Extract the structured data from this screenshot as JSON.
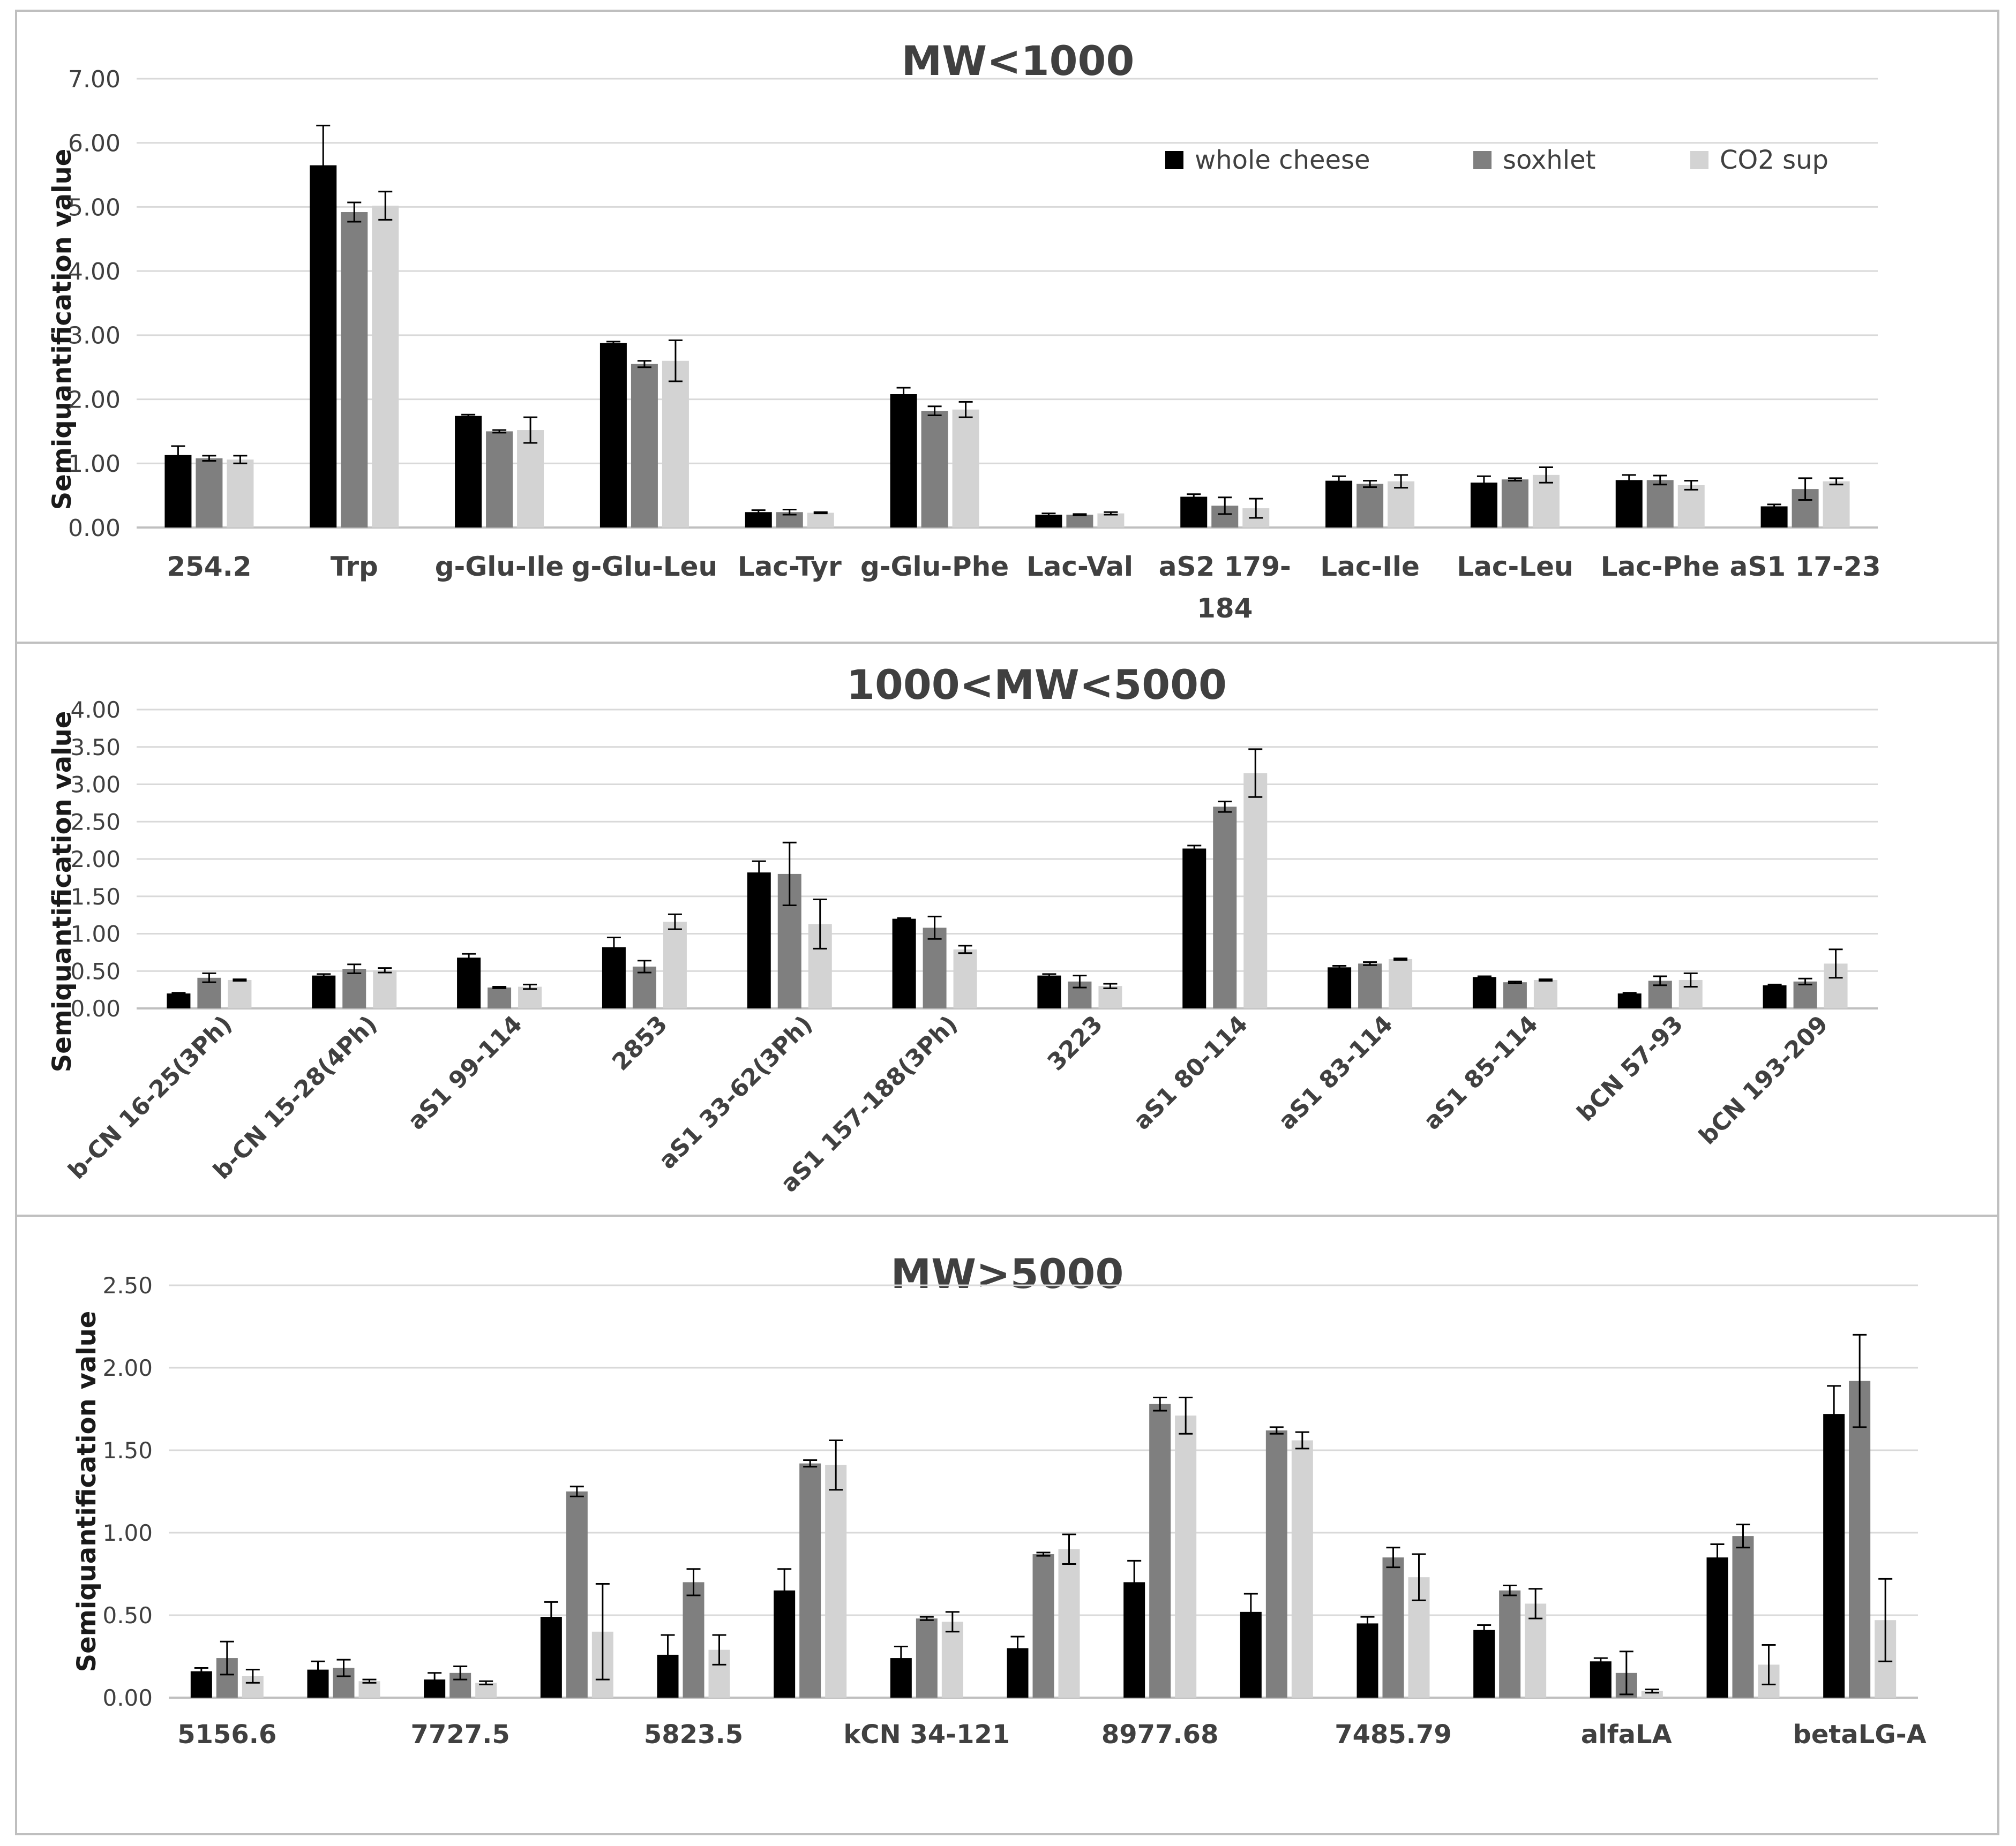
{
  "figure": {
    "series_names": [
      "whole cheese",
      "soxhlet",
      "CO2 sup"
    ],
    "colors": {
      "whole cheese": "#000000",
      "soxhlet": "#7f7f7f",
      "CO2 sup": "#d3d3d3",
      "grid": "#d9d9d9",
      "axis": "#bfbfbf",
      "border": "#bfbfbf"
    }
  },
  "chart_data": [
    {
      "type": "bar",
      "title": "MW<1000",
      "xlabel": "",
      "ylabel": "Semiquantification  value",
      "ylim": [
        0,
        7
      ],
      "yticks": [
        "0.00",
        "1.00",
        "2.00",
        "3.00",
        "4.00",
        "5.00",
        "6.00",
        "7.00"
      ],
      "legend_position": "top-right",
      "categories": [
        "254.2",
        "Trp",
        "g-Glu-Ile",
        "g-Glu-Leu",
        "Lac-Tyr",
        "g-Glu-Phe",
        "Lac-Val",
        "aS2 179-184",
        "Lac-Ile",
        "Lac-Leu",
        "Lac-Phe",
        "aS1 17-23"
      ],
      "category_lines": [
        [
          "254.2"
        ],
        [
          "Trp"
        ],
        [
          "g-Glu-Ile"
        ],
        [
          "g-Glu-Leu"
        ],
        [
          "Lac-Tyr"
        ],
        [
          "g-Glu-Phe"
        ],
        [
          "Lac-Val"
        ],
        [
          "aS2 179-",
          "184"
        ],
        [
          "Lac-Ile"
        ],
        [
          "Lac-Leu"
        ],
        [
          "Lac-Phe"
        ],
        [
          "aS1 17-23"
        ]
      ],
      "series": [
        {
          "name": "whole cheese",
          "values": [
            1.13,
            5.65,
            1.74,
            2.88,
            0.24,
            2.08,
            0.2,
            0.48,
            0.73,
            0.7,
            0.74,
            0.33
          ],
          "errors": [
            0.14,
            0.62,
            0.02,
            0.02,
            0.03,
            0.1,
            0.02,
            0.04,
            0.07,
            0.1,
            0.08,
            0.03
          ]
        },
        {
          "name": "soxhlet",
          "values": [
            1.08,
            4.92,
            1.5,
            2.55,
            0.24,
            1.82,
            0.2,
            0.34,
            0.68,
            0.75,
            0.74,
            0.6
          ],
          "errors": [
            0.04,
            0.15,
            0.02,
            0.05,
            0.04,
            0.07,
            0.01,
            0.13,
            0.05,
            0.02,
            0.07,
            0.17
          ]
        },
        {
          "name": "CO2 sup",
          "values": [
            1.06,
            5.02,
            1.52,
            2.6,
            0.23,
            1.84,
            0.22,
            0.3,
            0.72,
            0.82,
            0.66,
            0.72
          ],
          "errors": [
            0.06,
            0.22,
            0.2,
            0.32,
            0.01,
            0.12,
            0.02,
            0.15,
            0.1,
            0.12,
            0.07,
            0.05
          ]
        }
      ]
    },
    {
      "type": "bar",
      "title": "1000<MW<5000",
      "xlabel": "",
      "ylabel": "Semiquantification  value",
      "ylim": [
        0,
        4
      ],
      "yticks": [
        "0.00",
        "0.50",
        "1.00",
        "1.50",
        "2.00",
        "2.50",
        "3.00",
        "3.50",
        "4.00"
      ],
      "legend_position": "none",
      "categories": [
        "b-CN 16-25(3Ph)",
        "b-CN 15-28(4Ph)",
        "aS1 99-114",
        "2853",
        "aS1 33-62(3Ph)",
        "aS1 157-188(3Ph)",
        "3223",
        "aS1 80-114",
        "aS1 83-114",
        "aS1 85-114",
        "bCN 57-93",
        "bCN 193-209"
      ],
      "series": [
        {
          "name": "whole cheese",
          "values": [
            0.2,
            0.44,
            0.68,
            0.82,
            1.82,
            1.2,
            0.44,
            2.14,
            0.55,
            0.42,
            0.2,
            0.31
          ],
          "errors": [
            0.01,
            0.02,
            0.05,
            0.13,
            0.15,
            0.01,
            0.02,
            0.04,
            0.02,
            0.01,
            0.01,
            0.01
          ]
        },
        {
          "name": "soxhlet",
          "values": [
            0.41,
            0.53,
            0.28,
            0.56,
            1.8,
            1.08,
            0.36,
            2.7,
            0.6,
            0.35,
            0.37,
            0.36
          ],
          "errors": [
            0.06,
            0.06,
            0.01,
            0.08,
            0.42,
            0.15,
            0.08,
            0.07,
            0.02,
            0.01,
            0.06,
            0.04
          ]
        },
        {
          "name": "CO2 sup",
          "values": [
            0.38,
            0.51,
            0.29,
            1.16,
            1.13,
            0.79,
            0.3,
            3.15,
            0.66,
            0.38,
            0.38,
            0.6
          ],
          "errors": [
            0.01,
            0.03,
            0.03,
            0.1,
            0.33,
            0.05,
            0.03,
            0.32,
            0.01,
            0.01,
            0.09,
            0.19
          ]
        }
      ]
    },
    {
      "type": "bar",
      "title": "MW>5000",
      "xlabel": "",
      "ylabel": "Semiquantification  value",
      "ylim": [
        0,
        2.5
      ],
      "yticks": [
        "0.00",
        "0.50",
        "1.00",
        "1.50",
        "2.00",
        "2.50"
      ],
      "legend_position": "none",
      "categories": [
        "5156.6",
        "",
        "7727.5",
        "",
        "5823.5",
        "",
        "kCN 34-121",
        "",
        "8977.68",
        "",
        "7485.79",
        "",
        "alfaLA",
        "",
        "betaLG-A"
      ],
      "series": [
        {
          "name": "whole cheese",
          "values": [
            0.16,
            0.17,
            0.11,
            0.49,
            0.26,
            0.65,
            0.24,
            0.3,
            0.7,
            0.52,
            0.45,
            0.41,
            0.22,
            0.85,
            1.72
          ],
          "errors": [
            0.02,
            0.05,
            0.04,
            0.09,
            0.12,
            0.13,
            0.07,
            0.07,
            0.13,
            0.11,
            0.04,
            0.03,
            0.02,
            0.08,
            0.17
          ]
        },
        {
          "name": "soxhlet",
          "values": [
            0.24,
            0.18,
            0.15,
            1.25,
            0.7,
            1.42,
            0.48,
            0.87,
            1.78,
            1.62,
            0.85,
            0.65,
            0.15,
            0.98,
            1.92
          ],
          "errors": [
            0.1,
            0.05,
            0.04,
            0.03,
            0.08,
            0.02,
            0.01,
            0.01,
            0.04,
            0.02,
            0.06,
            0.03,
            0.13,
            0.07,
            0.28
          ]
        },
        {
          "name": "CO2 sup",
          "values": [
            0.13,
            0.1,
            0.09,
            0.4,
            0.29,
            1.41,
            0.46,
            0.9,
            1.71,
            1.56,
            0.73,
            0.57,
            0.04,
            0.2,
            0.47
          ],
          "errors": [
            0.04,
            0.01,
            0.01,
            0.29,
            0.09,
            0.15,
            0.06,
            0.09,
            0.11,
            0.05,
            0.14,
            0.09,
            0.01,
            0.12,
            0.25
          ]
        }
      ]
    }
  ]
}
